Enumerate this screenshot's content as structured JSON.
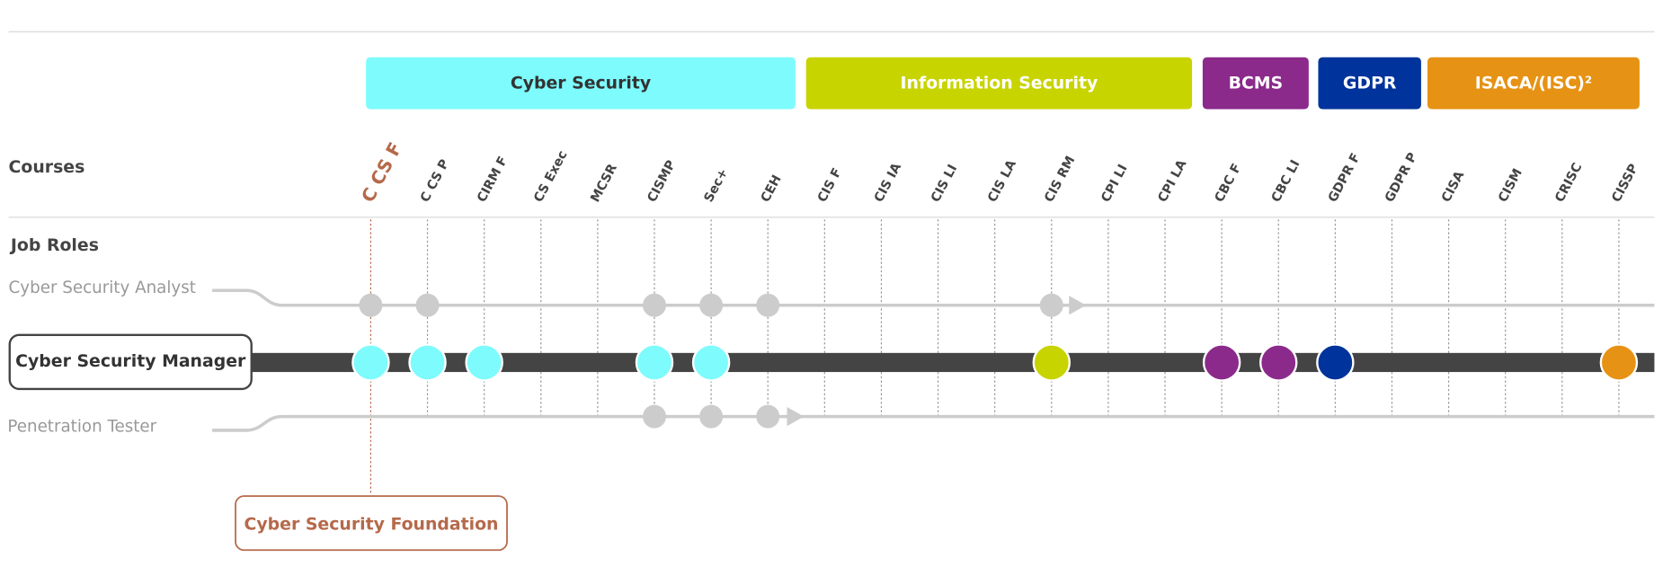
{
  "groups": [
    "Cyber Security",
    "Information Security",
    "BCMS",
    "GDPR",
    "ISACA/(ISC)²"
  ],
  "courses_heading": "Courses",
  "courses": [
    "C CS F",
    "C CS P",
    "CIRM F",
    "CS Exec",
    "MCSR",
    "CISMP",
    "Sec+",
    "CEH",
    "CIS F",
    "CIS IA",
    "CIS LI",
    "CIS LA",
    "CIS RM",
    "CPI LI",
    "CPI LA",
    "CBC F",
    "CBC LI",
    "GDPR F",
    "GDPR P",
    "CISA",
    "CISM",
    "CRISC",
    "CISSP"
  ],
  "roles_heading": "Job Roles",
  "roles": [
    "Cyber Security Analyst",
    "Cyber Security Manager",
    "Penetration Tester"
  ],
  "callout": "Cyber Security Foundation"
}
